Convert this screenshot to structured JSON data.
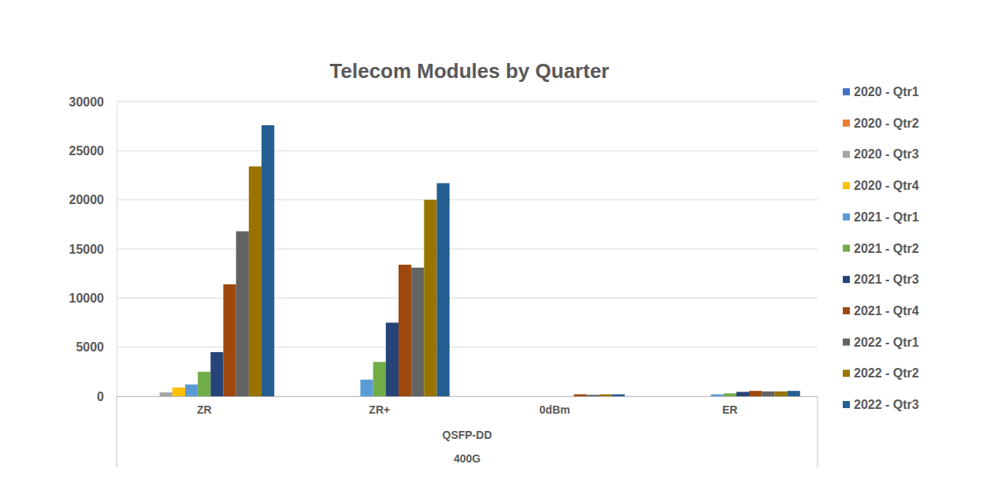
{
  "chart_data": {
    "type": "bar",
    "title": "Telecom Modules by Quarter",
    "categories": [
      "ZR",
      "ZR+",
      "0dBm",
      "ER"
    ],
    "category_groups": [
      "QSFP-DD",
      "400G"
    ],
    "series": [
      {
        "name": "2020 - Qtr1",
        "color": "#4472C4",
        "values": [
          0,
          0,
          0,
          0
        ]
      },
      {
        "name": "2020 - Qtr2",
        "color": "#ED7D31",
        "values": [
          0,
          0,
          0,
          0
        ]
      },
      {
        "name": "2020 - Qtr3",
        "color": "#A5A5A5",
        "values": [
          400,
          0,
          0,
          0
        ]
      },
      {
        "name": "2020 - Qtr4",
        "color": "#FFC000",
        "values": [
          900,
          0,
          0,
          0
        ]
      },
      {
        "name": "2021 - Qtr1",
        "color": "#5B9BD5",
        "values": [
          1200,
          1700,
          0,
          200
        ]
      },
      {
        "name": "2021 - Qtr2",
        "color": "#70AD47",
        "values": [
          2500,
          3500,
          0,
          300
        ]
      },
      {
        "name": "2021 - Qtr3",
        "color": "#264478",
        "values": [
          4500,
          7500,
          0,
          450
        ]
      },
      {
        "name": "2021 - Qtr4",
        "color": "#9E480E",
        "values": [
          11400,
          13400,
          200,
          550
        ]
      },
      {
        "name": "2022 - Qtr1",
        "color": "#636363",
        "values": [
          16800,
          13100,
          150,
          500
        ]
      },
      {
        "name": "2022 - Qtr2",
        "color": "#997300",
        "values": [
          23400,
          20000,
          200,
          500
        ]
      },
      {
        "name": "2022 - Qtr3",
        "color": "#255E91",
        "values": [
          27600,
          21700,
          200,
          550
        ]
      }
    ],
    "ylim": [
      0,
      30000
    ],
    "yticks": [
      0,
      5000,
      10000,
      15000,
      20000,
      25000,
      30000
    ],
    "grid": true,
    "legend": "right"
  }
}
